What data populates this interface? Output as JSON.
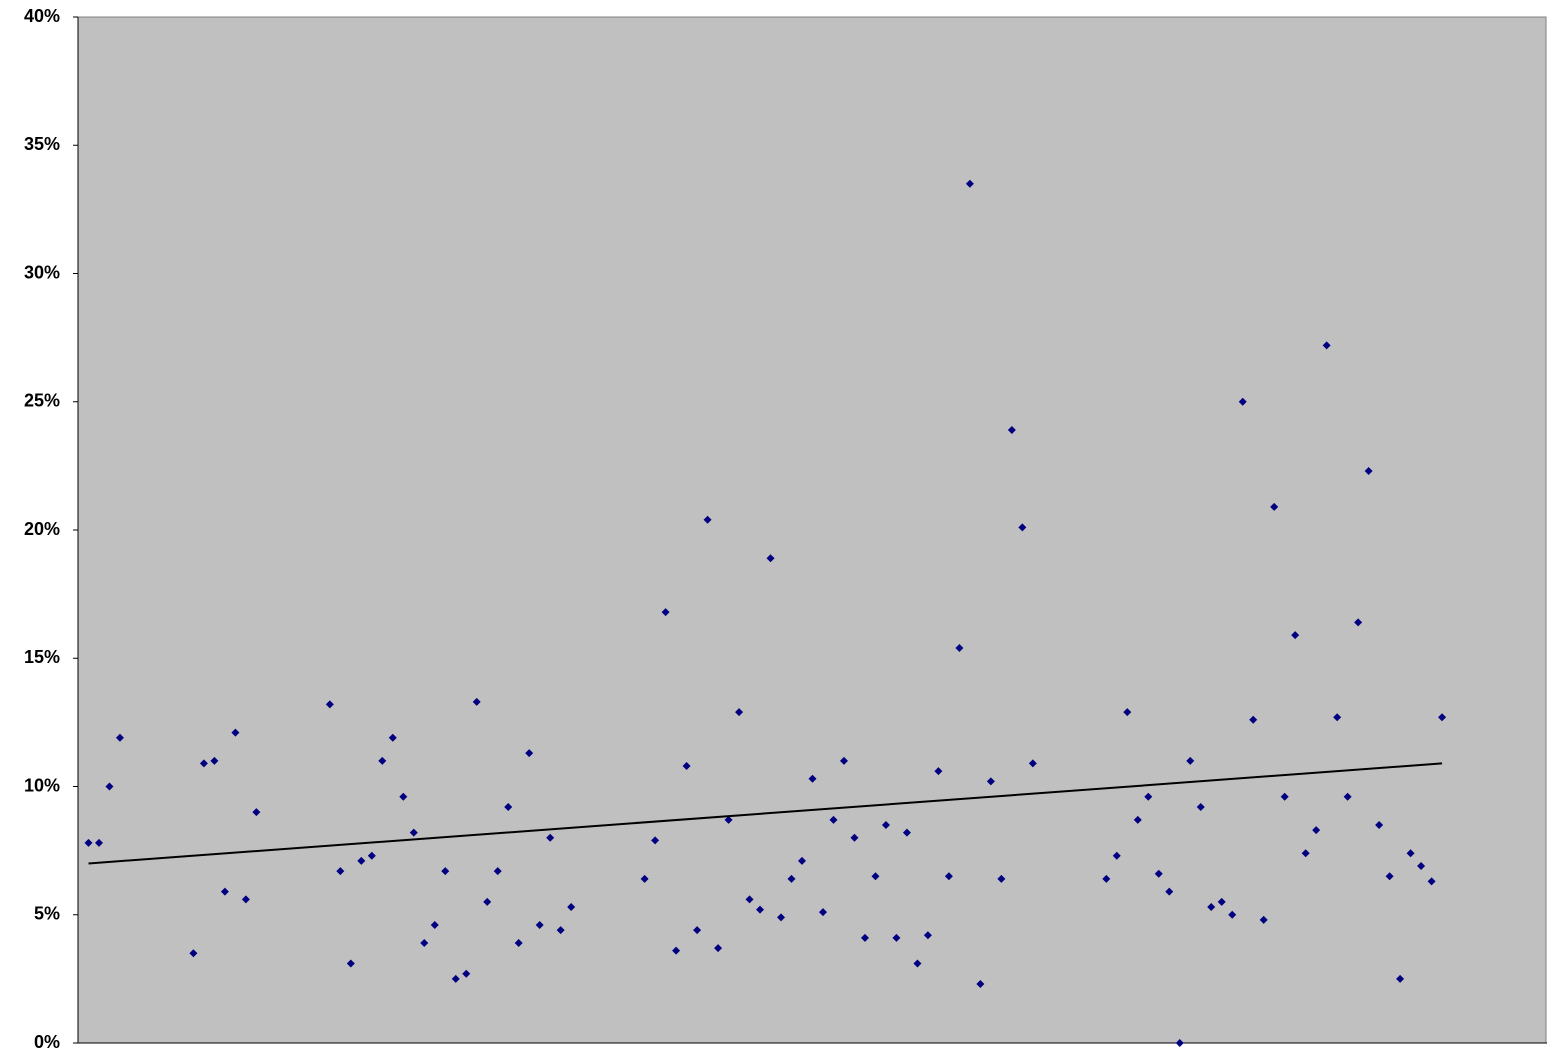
{
  "chart_data": {
    "type": "scatter",
    "xlim": [
      0,
      140
    ],
    "ylim": [
      0,
      40
    ],
    "yticks": [
      {
        "value": 0,
        "label": "0%"
      },
      {
        "value": 5,
        "label": "5%"
      },
      {
        "value": 10,
        "label": "10%"
      },
      {
        "value": 15,
        "label": "15%"
      },
      {
        "value": 20,
        "label": "20%"
      },
      {
        "value": 25,
        "label": "25%"
      },
      {
        "value": 30,
        "label": "30%"
      },
      {
        "value": 35,
        "label": "35%"
      },
      {
        "value": 40,
        "label": "40%"
      }
    ],
    "background": "#c0c0c0",
    "series": [
      {
        "type": "scatter",
        "color": "#000080",
        "x": [
          1,
          2,
          3,
          4,
          11,
          12,
          13,
          14,
          15,
          16,
          17,
          24,
          25,
          26,
          27,
          28,
          29,
          30,
          31,
          32,
          33,
          34,
          35,
          36,
          37,
          38,
          39,
          40,
          41,
          42,
          43,
          44,
          45,
          46,
          47,
          54,
          55,
          56,
          57,
          58,
          59,
          60,
          61,
          62,
          63,
          64,
          65,
          66,
          67,
          68,
          69,
          70,
          71,
          72,
          73,
          74,
          75,
          76,
          77,
          78,
          79,
          80,
          81,
          82,
          83,
          84,
          85,
          86,
          87,
          88,
          89,
          90,
          91,
          98,
          99,
          100,
          101,
          102,
          103,
          104,
          105,
          106,
          107,
          108,
          109,
          110,
          111,
          112,
          113,
          114,
          115,
          116,
          117,
          118,
          119,
          120,
          121,
          122,
          123,
          124,
          125,
          126,
          127,
          128,
          129,
          130
        ],
        "values": [
          7.8,
          7.8,
          10.0,
          11.9,
          3.5,
          10.9,
          11.0,
          5.9,
          12.1,
          5.6,
          9.0,
          13.2,
          6.7,
          3.1,
          7.1,
          7.3,
          11.0,
          11.9,
          9.6,
          8.2,
          3.9,
          4.6,
          6.7,
          2.5,
          2.7,
          13.3,
          5.5,
          6.7,
          9.2,
          3.9,
          11.3,
          4.6,
          8.0,
          4.4,
          5.3,
          6.4,
          7.9,
          16.8,
          3.6,
          10.8,
          4.4,
          20.4,
          3.7,
          8.7,
          12.9,
          5.6,
          5.2,
          18.9,
          4.9,
          6.4,
          7.1,
          10.3,
          5.1,
          8.7,
          11.0,
          8.0,
          4.1,
          6.5,
          8.5,
          4.1,
          8.2,
          3.1,
          4.2,
          10.6,
          6.5,
          15.4,
          33.5,
          2.3,
          10.2,
          6.4,
          23.9,
          20.1,
          10.9,
          6.4,
          7.3,
          12.9,
          8.7,
          9.6,
          6.6,
          5.9,
          0.0,
          11.0,
          9.2,
          5.3,
          5.5,
          5.0,
          25.0,
          12.6,
          4.8,
          20.9,
          9.6,
          15.9,
          7.4,
          8.3,
          27.2,
          12.7,
          9.6,
          16.4,
          22.3,
          8.5,
          6.5,
          2.5,
          7.4,
          6.9,
          6.3,
          12.7
        ]
      },
      {
        "type": "line",
        "color": "#000000",
        "x": [
          1,
          130
        ],
        "values": [
          7.0,
          10.9
        ]
      }
    ]
  }
}
